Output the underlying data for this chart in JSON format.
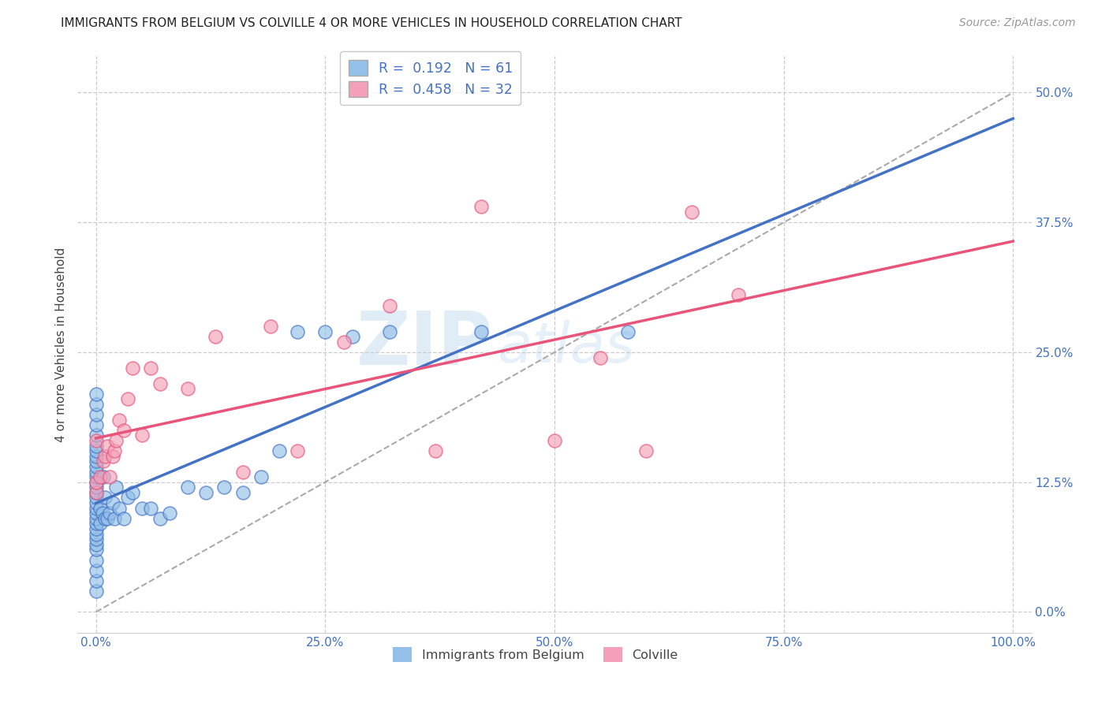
{
  "title": "IMMIGRANTS FROM BELGIUM VS COLVILLE 4 OR MORE VEHICLES IN HOUSEHOLD CORRELATION CHART",
  "source": "Source: ZipAtlas.com",
  "ylabel": "4 or more Vehicles in Household",
  "legend_label1": "Immigrants from Belgium",
  "legend_label2": "Colville",
  "r1": 0.192,
  "n1": 61,
  "r2": 0.458,
  "n2": 32,
  "xlim": [
    -0.01,
    1.0
  ],
  "ylim": [
    -0.01,
    0.52
  ],
  "xticks": [
    0.0,
    0.25,
    0.5,
    0.75,
    1.0
  ],
  "xticklabels": [
    "0.0%",
    "25.0%",
    "50.0%",
    "75.0%",
    "100.0%"
  ],
  "yticks": [
    0.0,
    0.125,
    0.25,
    0.375,
    0.5
  ],
  "yticklabels": [
    "0.0%",
    "12.5%",
    "25.0%",
    "37.5%",
    "50.0%"
  ],
  "color1": "#92C0E8",
  "color2": "#F4A0B8",
  "line_color1": "#4472C4",
  "line_color2": "#E8547A",
  "watermark_zip": "ZIP",
  "watermark_atlas": "atlas",
  "background_color": "#FFFFFF",
  "blue_points_x": [
    0.0,
    0.0,
    0.0,
    0.0,
    0.0,
    0.0,
    0.0,
    0.0,
    0.0,
    0.0,
    0.0,
    0.0,
    0.0,
    0.0,
    0.0,
    0.0,
    0.0,
    0.0,
    0.0,
    0.0,
    0.0,
    0.0,
    0.0,
    0.0,
    0.0,
    0.0,
    0.0,
    0.0,
    0.0,
    0.0,
    0.005,
    0.005,
    0.007,
    0.008,
    0.01,
    0.01,
    0.012,
    0.015,
    0.018,
    0.02,
    0.022,
    0.025,
    0.03,
    0.035,
    0.04,
    0.05,
    0.06,
    0.07,
    0.08,
    0.1,
    0.12,
    0.14,
    0.16,
    0.18,
    0.2,
    0.22,
    0.25,
    0.28,
    0.32,
    0.42,
    0.58
  ],
  "blue_points_y": [
    0.02,
    0.03,
    0.04,
    0.05,
    0.06,
    0.065,
    0.07,
    0.075,
    0.08,
    0.085,
    0.09,
    0.095,
    0.1,
    0.105,
    0.11,
    0.115,
    0.12,
    0.125,
    0.13,
    0.135,
    0.14,
    0.145,
    0.15,
    0.155,
    0.16,
    0.17,
    0.18,
    0.19,
    0.2,
    0.21,
    0.085,
    0.1,
    0.095,
    0.13,
    0.09,
    0.11,
    0.09,
    0.095,
    0.105,
    0.09,
    0.12,
    0.1,
    0.09,
    0.11,
    0.115,
    0.1,
    0.1,
    0.09,
    0.095,
    0.12,
    0.115,
    0.12,
    0.115,
    0.13,
    0.155,
    0.27,
    0.27,
    0.265,
    0.27,
    0.27,
    0.27
  ],
  "pink_points_x": [
    0.0,
    0.0,
    0.0,
    0.005,
    0.008,
    0.01,
    0.012,
    0.015,
    0.018,
    0.02,
    0.022,
    0.025,
    0.03,
    0.035,
    0.04,
    0.05,
    0.06,
    0.07,
    0.1,
    0.13,
    0.16,
    0.19,
    0.22,
    0.27,
    0.32,
    0.37,
    0.42,
    0.5,
    0.55,
    0.6,
    0.65,
    0.7
  ],
  "pink_points_y": [
    0.165,
    0.115,
    0.125,
    0.13,
    0.145,
    0.15,
    0.16,
    0.13,
    0.15,
    0.155,
    0.165,
    0.185,
    0.175,
    0.205,
    0.235,
    0.17,
    0.235,
    0.22,
    0.215,
    0.265,
    0.135,
    0.275,
    0.155,
    0.26,
    0.295,
    0.155,
    0.39,
    0.165,
    0.245,
    0.155,
    0.385,
    0.305
  ]
}
